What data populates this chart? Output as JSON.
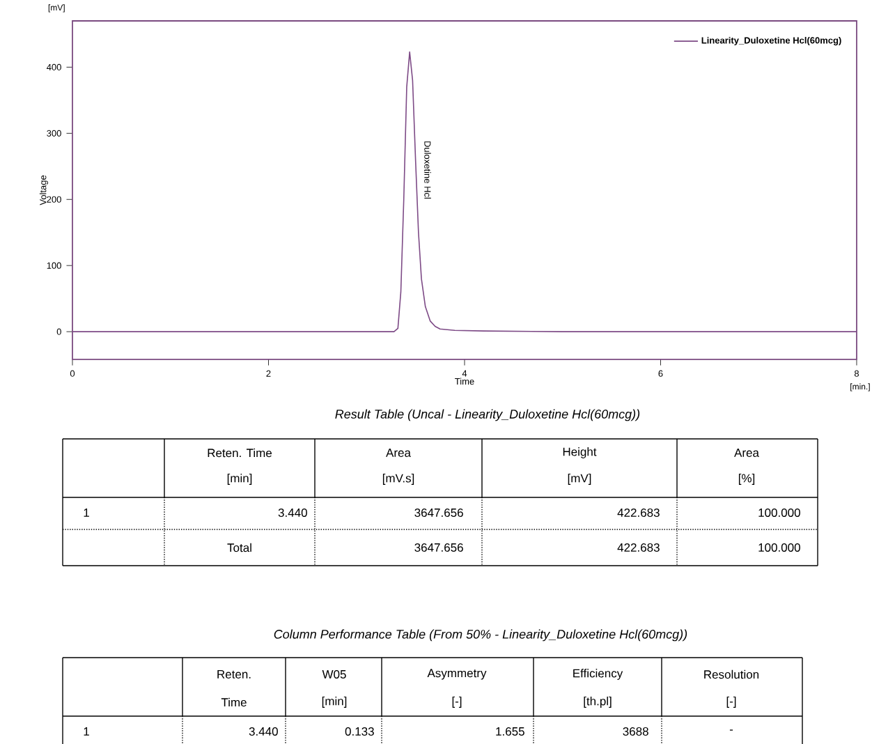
{
  "chart_data": {
    "type": "line",
    "xlabel": "Time",
    "ylabel": "Voltage",
    "xlim": [
      0,
      8
    ],
    "ylim": [
      -42,
      470
    ],
    "xticks": [
      0,
      2,
      4,
      6,
      8
    ],
    "yticks": [
      0,
      100,
      200,
      300,
      400
    ],
    "legend": "top right",
    "marker": "none",
    "line_style": "solid",
    "series": [
      {
        "name": "Linearity_Duloxetine Hcl(60mcg)",
        "color": "#7d4a86",
        "x": [
          0,
          3.28,
          3.32,
          3.35,
          3.38,
          3.41,
          3.44,
          3.47,
          3.5,
          3.53,
          3.56,
          3.6,
          3.65,
          3.7,
          3.75,
          3.9,
          4.2,
          5,
          8
        ],
        "values": [
          0,
          0,
          5,
          60,
          200,
          370,
          423,
          380,
          260,
          150,
          80,
          38,
          16,
          8,
          4,
          2,
          1,
          0,
          0
        ]
      }
    ],
    "annotations": [
      "Duloxetine Hcl",
      "[mV]",
      "[min.]",
      "Result Table (Uncal - Linearity_Duloxetine Hcl(60mcg))",
      "Reten. Time",
      "[min]",
      "Area",
      "[mV.s]",
      "Height",
      "[mV]",
      "Area",
      "[%]",
      "1",
      "3.440",
      "3647.656",
      "422.683",
      "100.000",
      "Total",
      "3647.656",
      "422.683",
      "100.000",
      "Column Performance Table (From 50% - Linearity_Duloxetine Hcl(60mcg))",
      "Reten.",
      "Time",
      "W05",
      "[min]",
      "Asymmetry",
      "[-]",
      "Efficiency",
      "[th.pl]",
      "Resolution",
      "[-]",
      "1",
      "3.440",
      "0.133",
      "1.655",
      "3688",
      "-"
    ]
  }
}
